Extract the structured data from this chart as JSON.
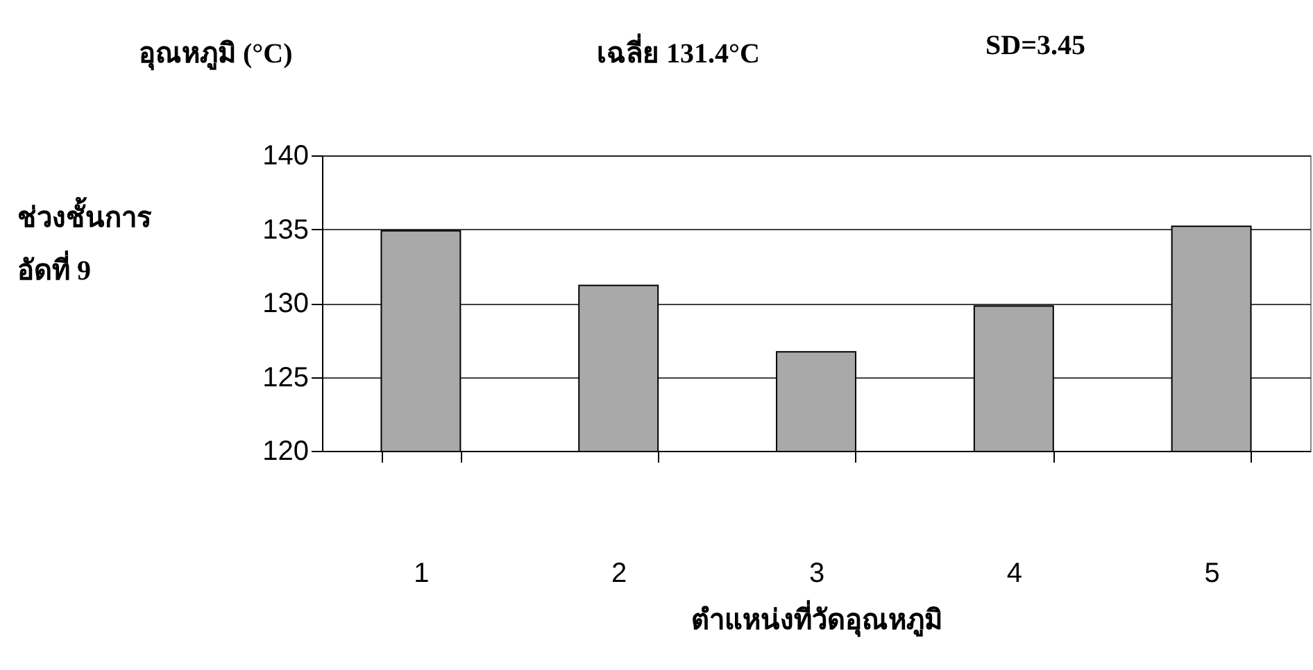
{
  "chart_data": {
    "type": "bar",
    "title": "อุณหภูมิ (°C)",
    "annotations": [
      "เฉลี่ย 131.4°C",
      "SD=3.45"
    ],
    "ylabel": "ช่วงชั้นการ\nอัดที่ 9",
    "xlabel": "ตำแหน่งที่วัดอุณหภูมิ",
    "categories": [
      "1",
      "2",
      "3",
      "4",
      "5"
    ],
    "values": [
      134.9,
      131.2,
      126.7,
      129.8,
      135.2
    ],
    "color": "#a9a9a9",
    "ylim": [
      120,
      140
    ],
    "yticks": [
      120,
      125,
      130,
      135,
      140
    ],
    "grid": "y"
  }
}
